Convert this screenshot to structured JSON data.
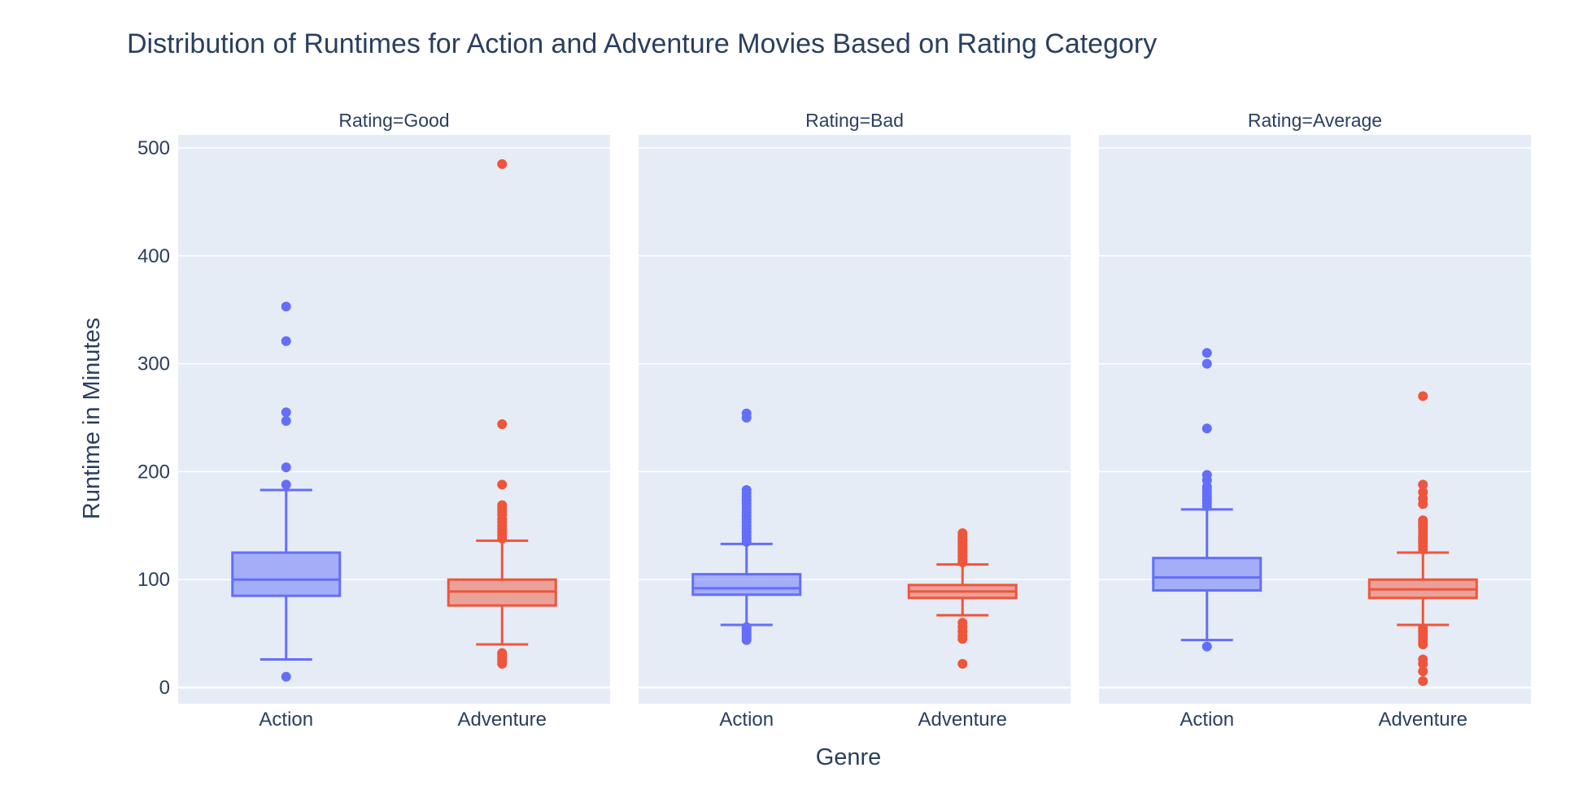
{
  "chart_data": {
    "type": "box",
    "title": "Distribution of Runtimes for Action and Adventure Movies Based on Rating Category",
    "xlabel": "Genre",
    "ylabel": "Runtime in Minutes",
    "ylim": [
      -15,
      512
    ],
    "yticks": [
      0,
      100,
      200,
      300,
      400,
      500
    ],
    "grid": true,
    "categories": [
      "Action",
      "Adventure"
    ],
    "colors": {
      "Action": "#636efa",
      "Adventure": "#ef553b",
      "plot_bg": "#e5ecf6",
      "grid": "#ffffff",
      "text": "#2a3f5f"
    },
    "facets": [
      {
        "label": "Rating=Good",
        "boxes": [
          {
            "category": "Action",
            "lower_fence": 26,
            "q1": 85,
            "median": 100,
            "q3": 125,
            "upper_fence": 183,
            "outliers": [
              10,
              188,
              204,
              247,
              255,
              321,
              353
            ]
          },
          {
            "category": "Adventure",
            "lower_fence": 40,
            "q1": 76,
            "median": 89,
            "q3": 100,
            "upper_fence": 136,
            "outliers": [
              22,
              24,
              26,
              28,
              30,
              32,
              138,
              141,
              144,
              147,
              150,
              153,
              156,
              160,
              163,
              166,
              169,
              188,
              244,
              485
            ]
          }
        ]
      },
      {
        "label": "Rating=Bad",
        "boxes": [
          {
            "category": "Action",
            "lower_fence": 58,
            "q1": 86,
            "median": 92,
            "q3": 105,
            "upper_fence": 133,
            "outliers": [
              44,
              46,
              48,
              50,
              52,
              54,
              56,
              135,
              138,
              141,
              144,
              147,
              150,
              153,
              156,
              159,
              162,
              165,
              168,
              171,
              174,
              177,
              180,
              183,
              250,
              254
            ]
          },
          {
            "category": "Adventure",
            "lower_fence": 67,
            "q1": 83,
            "median": 89,
            "q3": 95,
            "upper_fence": 114,
            "outliers": [
              22,
              45,
              48,
              52,
              56,
              60,
              116,
              119,
              122,
              125,
              128,
              131,
              134,
              137,
              140,
              143
            ]
          }
        ]
      },
      {
        "label": "Rating=Average",
        "boxes": [
          {
            "category": "Action",
            "lower_fence": 44,
            "q1": 90,
            "median": 102,
            "q3": 120,
            "upper_fence": 165,
            "outliers": [
              38,
              168,
              171,
              174,
              177,
              180,
              183,
              186,
              192,
              197,
              240,
              300,
              310
            ]
          },
          {
            "category": "Adventure",
            "lower_fence": 58,
            "q1": 83,
            "median": 91,
            "q3": 100,
            "upper_fence": 125,
            "outliers": [
              6,
              15,
              22,
              26,
              40,
              43,
              46,
              49,
              52,
              55,
              128,
              131,
              134,
              137,
              140,
              143,
              146,
              149,
              152,
              155,
              170,
              175,
              181,
              188,
              270
            ]
          }
        ]
      }
    ]
  }
}
